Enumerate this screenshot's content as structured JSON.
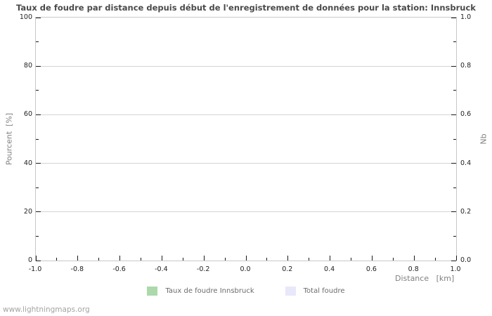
{
  "title": "Taux de foudre par distance depuis début de l'enregistrement de données pour la station: Innsbruck",
  "watermark": "www.lightningmaps.org",
  "axes": {
    "left": {
      "label": "Pourcent  [%]",
      "range": [
        0,
        100
      ],
      "major_ticks": [
        0,
        20,
        40,
        60,
        80,
        100
      ],
      "tick_labels": [
        "0",
        "20",
        "40",
        "60",
        "80",
        "100"
      ],
      "minor_ticks": [
        10,
        30,
        50,
        70,
        90
      ],
      "grid_values": [
        20,
        40,
        60,
        80
      ]
    },
    "right": {
      "label": "Nb",
      "range": [
        0,
        1
      ],
      "major_ticks": [
        0,
        0.2,
        0.4,
        0.6,
        0.8,
        1.0
      ],
      "tick_labels": [
        "0.0",
        "0.2",
        "0.4",
        "0.6",
        "0.8",
        "1.0"
      ],
      "minor_ticks": [
        0.1,
        0.3,
        0.5,
        0.7,
        0.9
      ]
    },
    "x": {
      "label": "Distance   [km]",
      "range": [
        -1,
        1
      ],
      "major_ticks": [
        -1.0,
        -0.8,
        -0.6,
        -0.4,
        -0.2,
        0.0,
        0.2,
        0.4,
        0.6,
        0.8,
        1.0
      ],
      "tick_labels": [
        "-1.0",
        "-0.8",
        "-0.6",
        "-0.4",
        "-0.2",
        "0.0",
        "0.2",
        "0.4",
        "0.6",
        "0.8",
        "1.0"
      ],
      "minor_ticks": [
        -0.9,
        -0.7,
        -0.5,
        -0.3,
        -0.1,
        0.1,
        0.3,
        0.5,
        0.7,
        0.9
      ]
    }
  },
  "legend": [
    {
      "label": "Taux de foudre Innsbruck",
      "color": "#abd9ab"
    },
    {
      "label": "Total foudre",
      "color": "#e8e8fa"
    }
  ],
  "colors": {
    "grid": "#d4d4d4",
    "plot_border": "#c8c8c8",
    "tick": "#1a1a1a",
    "title_text": "#4a4a4a",
    "axis_label_text": "#808080",
    "tick_label_text": "#222222",
    "legend_text": "#6b6b6b",
    "watermark_text": "#a3a3a3",
    "series_green": "#abd9ab",
    "series_lavender": "#e8e8fa"
  },
  "chart_data": {
    "type": "bar",
    "title": "Taux de foudre par distance depuis début de l'enregistrement de données pour la station: Innsbruck",
    "xlabel": "Distance [km]",
    "ylabel_left": "Pourcent [%]",
    "ylabel_right": "Nb",
    "xlim": [
      -1.0,
      1.0
    ],
    "ylim_left": [
      0,
      100
    ],
    "ylim_right": [
      0.0,
      1.0
    ],
    "grid": "horizontal major gridlines only",
    "legend_position": "bottom center",
    "series": [
      {
        "name": "Taux de foudre Innsbruck",
        "axis": "left",
        "color": "#abd9ab",
        "x": [],
        "values": []
      },
      {
        "name": "Total foudre",
        "axis": "right",
        "color": "#e8e8fa",
        "x": [],
        "values": []
      }
    ]
  }
}
